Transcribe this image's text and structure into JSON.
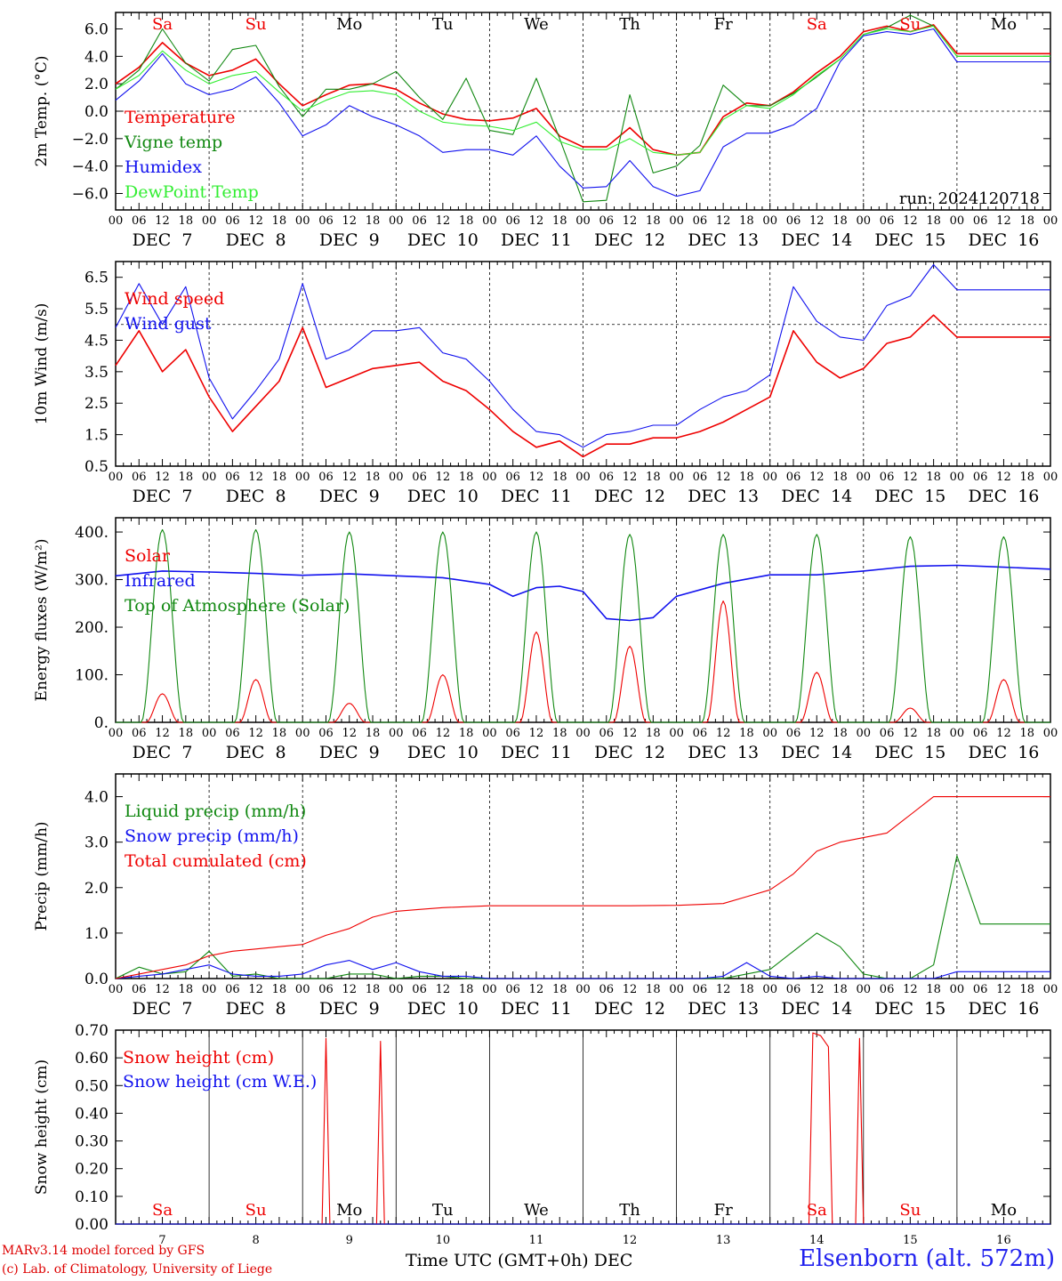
{
  "chart_data": [
    {
      "type": "line",
      "ylabel": "2m Temp. (°C)",
      "ylim": [
        -7.2,
        7.2
      ],
      "yticks": [
        "6.0",
        "4.0",
        "2.0",
        "0.0",
        "−2.0",
        "−4.0",
        "−6.0"
      ],
      "yticks_values": [
        6,
        4,
        2,
        0,
        -2,
        -4,
        -6
      ],
      "reference_line": 0,
      "annotation": "run: 2024120718",
      "series": [
        {
          "name": "Temperature",
          "color": "#ee0000",
          "x": [
            0,
            6,
            12,
            18,
            24,
            30,
            36,
            42,
            48,
            54,
            60,
            66,
            72,
            78,
            84,
            90,
            96,
            102,
            108,
            114,
            120,
            126,
            132,
            138,
            144,
            150,
            156,
            162,
            168,
            174,
            180,
            186,
            192,
            198,
            204,
            210,
            216,
            222,
            228,
            234,
            240
          ],
          "values": [
            2.0,
            3.2,
            5.0,
            3.5,
            2.6,
            3.0,
            3.8,
            2.0,
            0.4,
            1.2,
            1.9,
            2.0,
            1.6,
            0.6,
            -0.2,
            -0.6,
            -0.7,
            -0.5,
            0.2,
            -1.8,
            -2.6,
            -2.6,
            -1.2,
            -2.8,
            -3.2,
            -3.0,
            -0.4,
            0.6,
            0.4,
            1.4,
            2.8,
            4.0,
            5.8,
            6.2,
            5.8,
            6.3,
            4.2,
            4.2,
            4.2,
            4.2,
            4.2
          ]
        },
        {
          "name": "Vigne temp",
          "color": "#118811",
          "x": [
            0,
            6,
            12,
            18,
            24,
            30,
            36,
            42,
            48,
            54,
            60,
            66,
            72,
            78,
            84,
            90,
            96,
            102,
            108,
            114,
            120,
            126,
            132,
            138,
            144,
            150,
            156,
            162,
            168,
            174,
            180,
            186,
            192,
            198,
            204,
            210,
            216,
            222,
            228,
            234,
            240
          ],
          "values": [
            1.6,
            3.0,
            6.0,
            3.5,
            2.2,
            4.5,
            4.8,
            1.8,
            -0.4,
            1.6,
            1.6,
            2.0,
            2.9,
            1.0,
            -0.6,
            2.4,
            -1.4,
            -1.7,
            2.4,
            -2.0,
            -6.6,
            -6.5,
            1.2,
            -4.5,
            -4.0,
            -2.5,
            1.9,
            0.4,
            0.4,
            1.3,
            2.5,
            3.8,
            5.6,
            6.1,
            7.0,
            6.2,
            4.0,
            4.0,
            4.0,
            4.0,
            4.0
          ]
        },
        {
          "name": "Humidex",
          "color": "#1111ee",
          "x": [
            0,
            6,
            12,
            18,
            24,
            30,
            36,
            42,
            48,
            54,
            60,
            66,
            72,
            78,
            84,
            90,
            96,
            102,
            108,
            114,
            120,
            126,
            132,
            138,
            144,
            150,
            156,
            162,
            168,
            174,
            180,
            186,
            192,
            198,
            204,
            210,
            216,
            222,
            228,
            234,
            240
          ],
          "values": [
            0.8,
            2.2,
            4.2,
            2.0,
            1.2,
            1.6,
            2.5,
            0.6,
            -1.8,
            -1.0,
            0.4,
            -0.4,
            -1.0,
            -1.8,
            -3.0,
            -2.8,
            -2.8,
            -3.2,
            -1.8,
            -4.0,
            -5.6,
            -5.5,
            -3.6,
            -5.5,
            -6.2,
            -5.8,
            -2.6,
            -1.6,
            -1.6,
            -1.0,
            0.2,
            3.6,
            5.5,
            5.8,
            5.6,
            6.0,
            3.6,
            3.6,
            3.6,
            3.6,
            3.6
          ]
        },
        {
          "name": "DewPoint Temp",
          "color": "#33ee33",
          "x": [
            0,
            6,
            12,
            18,
            24,
            30,
            36,
            42,
            48,
            54,
            60,
            66,
            72,
            78,
            84,
            90,
            96,
            102,
            108,
            114,
            120,
            126,
            132,
            138,
            144,
            150,
            156,
            162,
            168,
            174,
            180,
            186,
            192,
            198,
            204,
            210,
            216,
            222,
            228,
            234,
            240
          ],
          "values": [
            1.6,
            2.6,
            4.4,
            3.0,
            2.0,
            2.6,
            2.9,
            1.4,
            0.0,
            0.8,
            1.4,
            1.5,
            1.2,
            0.0,
            -0.8,
            -1.0,
            -1.1,
            -1.4,
            -0.8,
            -2.2,
            -2.8,
            -2.8,
            -2.0,
            -3.0,
            -3.2,
            -3.0,
            -0.6,
            0.4,
            0.2,
            1.2,
            2.6,
            3.8,
            5.6,
            6.0,
            5.8,
            6.2,
            4.0,
            4.0,
            4.0,
            4.0,
            4.0
          ]
        }
      ]
    },
    {
      "type": "line",
      "ylabel": "10m Wind (m/s)",
      "ylim": [
        0.5,
        7.0
      ],
      "yticks": [
        "6.5",
        "5.5",
        "4.5",
        "3.5",
        "2.5",
        "1.5",
        "0.5"
      ],
      "yticks_values": [
        6.5,
        5.5,
        4.5,
        3.5,
        2.5,
        1.5,
        0.5
      ],
      "reference_line": 5.0,
      "series": [
        {
          "name": "Wind speed",
          "color": "#ee0000",
          "x": [
            0,
            6,
            12,
            18,
            24,
            30,
            36,
            42,
            48,
            54,
            60,
            66,
            72,
            78,
            84,
            90,
            96,
            102,
            108,
            114,
            120,
            126,
            132,
            138,
            144,
            150,
            156,
            162,
            168,
            174,
            180,
            186,
            192,
            198,
            204,
            210,
            216,
            222,
            228,
            234,
            240
          ],
          "values": [
            3.7,
            4.8,
            3.5,
            4.2,
            2.7,
            1.6,
            2.4,
            3.2,
            4.9,
            3.0,
            3.3,
            3.6,
            3.7,
            3.8,
            3.2,
            2.9,
            2.3,
            1.6,
            1.1,
            1.3,
            0.8,
            1.2,
            1.2,
            1.4,
            1.4,
            1.6,
            1.9,
            2.3,
            2.7,
            4.8,
            3.8,
            3.3,
            3.6,
            4.4,
            4.6,
            5.3,
            4.6,
            4.6,
            4.6,
            4.6,
            4.6
          ]
        },
        {
          "name": "Wind gust",
          "color": "#1111ee",
          "x": [
            0,
            6,
            12,
            18,
            24,
            30,
            36,
            42,
            48,
            54,
            60,
            66,
            72,
            78,
            84,
            90,
            96,
            102,
            108,
            114,
            120,
            126,
            132,
            138,
            144,
            150,
            156,
            162,
            168,
            174,
            180,
            186,
            192,
            198,
            204,
            210,
            216,
            222,
            228,
            234,
            240
          ],
          "values": [
            4.9,
            6.3,
            5.0,
            6.2,
            3.3,
            2.0,
            2.9,
            3.9,
            6.3,
            3.9,
            4.2,
            4.8,
            4.8,
            4.9,
            4.1,
            3.9,
            3.2,
            2.3,
            1.6,
            1.5,
            1.1,
            1.5,
            1.6,
            1.8,
            1.8,
            2.3,
            2.7,
            2.9,
            3.4,
            6.2,
            5.1,
            4.6,
            4.5,
            5.6,
            5.9,
            6.9,
            6.1,
            6.1,
            6.1,
            6.1,
            6.1
          ]
        }
      ]
    },
    {
      "type": "line",
      "ylabel": "Energy fluxes (W/m²)",
      "ylim": [
        0,
        430
      ],
      "yticks": [
        "400.",
        "300.",
        "200.",
        "100.",
        "0."
      ],
      "yticks_values": [
        400,
        300,
        200,
        100,
        0
      ],
      "series": [
        {
          "name": "Solar",
          "color": "#ee0000",
          "daily_peak_hour": 12,
          "daily_peaks": [
            60,
            90,
            40,
            100,
            190,
            160,
            255,
            105,
            30,
            90
          ]
        },
        {
          "name": "Infrared",
          "color": "#1111ee",
          "x": [
            0,
            12,
            24,
            36,
            48,
            60,
            72,
            84,
            96,
            102,
            108,
            114,
            120,
            126,
            132,
            138,
            144,
            156,
            168,
            180,
            192,
            204,
            216,
            228,
            240
          ],
          "values": [
            308,
            318,
            316,
            313,
            309,
            312,
            308,
            304,
            290,
            265,
            283,
            286,
            275,
            218,
            214,
            220,
            265,
            292,
            310,
            310,
            318,
            328,
            330,
            326,
            322
          ]
        },
        {
          "name": "Top of Atmosphere (Solar)",
          "color": "#118811",
          "daily_peak_hour": 12,
          "daily_peaks": [
            405,
            405,
            400,
            400,
            400,
            395,
            395,
            395,
            390,
            390
          ]
        }
      ]
    },
    {
      "type": "line",
      "ylabel": "Precip (mm/h)",
      "ylim": [
        0,
        4.5
      ],
      "yticks": [
        "4.0",
        "3.0",
        "2.0",
        "1.0",
        "0.0"
      ],
      "yticks_values": [
        4,
        3,
        2,
        1,
        0
      ],
      "series": [
        {
          "name": "Liquid precip (mm/h)",
          "color": "#118811",
          "x": [
            0,
            6,
            12,
            18,
            24,
            30,
            36,
            42,
            48,
            54,
            60,
            66,
            72,
            78,
            84,
            90,
            96,
            150,
            156,
            162,
            168,
            174,
            180,
            186,
            192,
            198,
            204,
            210,
            216,
            222,
            228,
            234,
            240
          ],
          "values": [
            0,
            0.25,
            0.1,
            0.15,
            0.6,
            0.05,
            0.1,
            0.0,
            0.0,
            0.0,
            0.1,
            0.1,
            0.0,
            0.05,
            0.05,
            0.0,
            0.0,
            0.0,
            0.0,
            0.1,
            0.2,
            0.6,
            1.0,
            0.7,
            0.1,
            0.0,
            0.0,
            0.3,
            2.7,
            1.2,
            1.2,
            1.2,
            1.2
          ]
        },
        {
          "name": "Snow precip (mm/h)",
          "color": "#1111ee",
          "x": [
            0,
            6,
            12,
            18,
            24,
            30,
            36,
            42,
            48,
            54,
            60,
            66,
            72,
            78,
            84,
            90,
            96,
            150,
            156,
            162,
            168,
            174,
            180,
            186,
            192,
            198,
            204,
            210,
            216,
            222,
            228,
            234,
            240
          ],
          "values": [
            0,
            0.05,
            0.1,
            0.2,
            0.3,
            0.1,
            0.05,
            0.05,
            0.1,
            0.3,
            0.4,
            0.2,
            0.35,
            0.15,
            0.05,
            0.05,
            0.0,
            0.0,
            0.05,
            0.35,
            0.05,
            0.0,
            0.05,
            0.0,
            0.0,
            0.0,
            0.0,
            0.0,
            0.15,
            0.15,
            0.15,
            0.15,
            0.15
          ]
        },
        {
          "name": "Total cumulated (cm)",
          "color": "#ee0000",
          "x": [
            0,
            6,
            12,
            18,
            24,
            30,
            36,
            42,
            48,
            54,
            60,
            66,
            72,
            78,
            84,
            96,
            108,
            120,
            132,
            144,
            156,
            162,
            168,
            174,
            180,
            186,
            192,
            198,
            204,
            210,
            216,
            222,
            228,
            234,
            240
          ],
          "values": [
            0,
            0.1,
            0.2,
            0.3,
            0.5,
            0.6,
            0.65,
            0.7,
            0.75,
            0.95,
            1.1,
            1.35,
            1.48,
            1.52,
            1.56,
            1.6,
            1.6,
            1.6,
            1.6,
            1.61,
            1.65,
            1.8,
            1.95,
            2.3,
            2.8,
            3.0,
            3.1,
            3.2,
            3.6,
            4.0,
            4.0,
            4.0,
            4.0,
            4.0,
            4.0
          ]
        }
      ]
    },
    {
      "type": "line",
      "ylabel": "Snow height (cm)",
      "ylim": [
        0,
        0.7
      ],
      "yticks": [
        "0.70",
        "0.60",
        "0.50",
        "0.40",
        "0.30",
        "0.20",
        "0.10",
        "0.00"
      ],
      "yticks_values": [
        0.7,
        0.6,
        0.5,
        0.4,
        0.3,
        0.2,
        0.1,
        0.0
      ],
      "series": [
        {
          "name": "Snow height (cm)",
          "color": "#ee0000",
          "x": [
            0,
            53,
            54,
            55,
            67,
            68,
            69,
            178,
            179,
            181,
            183,
            184,
            186,
            190,
            191,
            192,
            240
          ],
          "values": [
            0,
            0,
            0.67,
            0,
            0,
            0.66,
            0,
            0,
            0.69,
            0.68,
            0.64,
            0,
            0,
            0,
            0.67,
            0,
            0
          ]
        },
        {
          "name": "Snow height (cm W.E.)",
          "color": "#1111ee",
          "x": [
            0,
            240
          ],
          "values": [
            0,
            0
          ]
        }
      ]
    }
  ],
  "x_axis": {
    "hours_range": [
      0,
      240
    ],
    "hour_tick_labels": [
      "00",
      "06",
      "12",
      "18"
    ],
    "date_labels": [
      "DEC  7",
      "DEC  8",
      "DEC  9",
      "DEC 10",
      "DEC 11",
      "DEC 12",
      "DEC 13",
      "DEC 14",
      "DEC 15",
      "DEC 16"
    ],
    "day_numbers": [
      "7",
      "8",
      "9",
      "10",
      "11",
      "12",
      "13",
      "14",
      "15",
      "16"
    ],
    "weekdays": [
      {
        "label": "Sa",
        "color": "#ee0000"
      },
      {
        "label": "Su",
        "color": "#ee0000"
      },
      {
        "label": "Mo",
        "color": "#000000"
      },
      {
        "label": "Tu",
        "color": "#000000"
      },
      {
        "label": "We",
        "color": "#000000"
      },
      {
        "label": "Th",
        "color": "#000000"
      },
      {
        "label": "Fr",
        "color": "#000000"
      },
      {
        "label": "Sa",
        "color": "#ee0000"
      },
      {
        "label": "Su",
        "color": "#ee0000"
      },
      {
        "label": "Mo",
        "color": "#000000"
      }
    ],
    "time_label": "Time UTC (GMT+0h) DEC"
  },
  "footer": {
    "credit_line1": "MARv3.14 model forced by GFS",
    "credit_line2": "(c) Lab. of Climatology, University of Liege",
    "station": "Elsenborn (alt. 572m)"
  }
}
